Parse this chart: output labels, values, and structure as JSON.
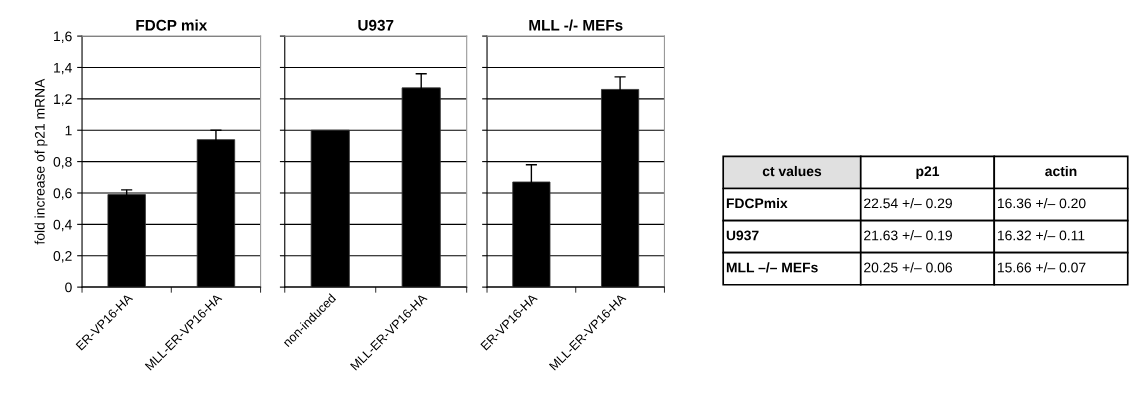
{
  "chart_data": [
    {
      "type": "bar",
      "title": "FDCP mix",
      "ylabel": "fold increase of p21 mRNA",
      "categories": [
        "ER-VP16-HA",
        "MLL-ER-VP16-HA"
      ],
      "values": [
        0.59,
        0.94
      ],
      "errors": [
        0.03,
        0.06
      ],
      "color": "#000000",
      "ylim": [
        0,
        1.6
      ],
      "yticks": [
        0,
        {
          "value": 0.2,
          "label": "0,2"
        },
        {
          "value": 0.4,
          "label": "0,4"
        },
        {
          "value": 0.6,
          "label": "0,6"
        },
        {
          "value": 0.8,
          "label": "0,8"
        },
        1,
        {
          "value": 1.2,
          "label": "1,2"
        },
        {
          "value": 1.4,
          "label": "1,4"
        },
        {
          "value": 1.6,
          "label": "1,6"
        }
      ],
      "grid": "y"
    },
    {
      "type": "bar",
      "title": "U937",
      "categories": [
        "non-induced",
        "MLL-ER-VP16-HA"
      ],
      "values": [
        1.0,
        1.27
      ],
      "errors": [
        null,
        0.09
      ],
      "color": "#000000",
      "ylim": [
        0,
        1.6
      ],
      "yticks": [
        0,
        0.2,
        0.4,
        0.6,
        0.8,
        1,
        1.2,
        1.4,
        1.6
      ],
      "grid": "y",
      "tick_labels": "x"
    },
    {
      "type": "bar",
      "title": "MLL -/- MEFs",
      "categories": [
        "ER-VP16-HA",
        "MLL-ER-VP16-HA"
      ],
      "values": [
        0.67,
        1.26
      ],
      "errors": [
        0.11,
        0.08
      ],
      "color": "#000000",
      "ylim": [
        0,
        1.6
      ],
      "yticks": [
        0,
        0.2,
        0.4,
        0.6,
        0.8,
        1,
        1.2,
        1.4,
        1.6
      ],
      "grid": "y",
      "tick_labels": "x"
    },
    {
      "type": "other",
      "categories": [
        "ct values",
        "p21",
        "actin"
      ],
      "y_categories": [
        "FDCPmix",
        "U937",
        "MLL –/– MEFs"
      ],
      "cell_labels": [
        [
          "22.54 +/– 0.29",
          "16.36 +/– 0.20"
        ],
        [
          "21.63 +/– 0.19",
          "16.32 +/– 0.11"
        ],
        [
          "20.25 +/– 0.06",
          "15.66 +/– 0.07"
        ]
      ]
    }
  ]
}
